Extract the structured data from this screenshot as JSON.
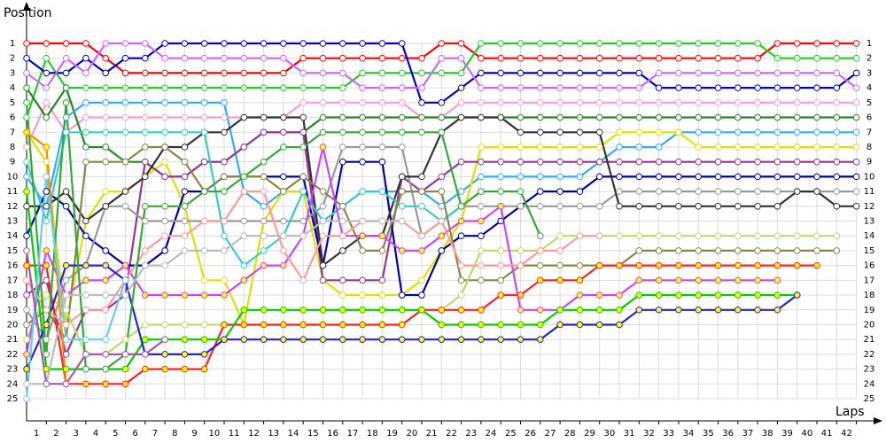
{
  "chart_data": {
    "type": "line",
    "y_title": "Position",
    "x_title": "Laps",
    "x": [
      0,
      1,
      2,
      3,
      4,
      5,
      6,
      7,
      8,
      9,
      10,
      11,
      12,
      13,
      14,
      15,
      16,
      17,
      18,
      19,
      20,
      21,
      22,
      23,
      24,
      25,
      26,
      27,
      28,
      29,
      30,
      31,
      32,
      33,
      34,
      35,
      36,
      37,
      38,
      39,
      40,
      41,
      42
    ],
    "xlim": [
      0,
      42
    ],
    "xticks": [
      1,
      2,
      3,
      4,
      5,
      6,
      7,
      8,
      9,
      10,
      11,
      12,
      13,
      14,
      15,
      16,
      17,
      18,
      19,
      20,
      21,
      22,
      23,
      24,
      25,
      26,
      27,
      28,
      29,
      30,
      31,
      32,
      33,
      34,
      35,
      36,
      37,
      38,
      39,
      40,
      41,
      42
    ],
    "ylim": [
      1,
      25
    ],
    "y_reversed": true,
    "yticks": [
      1,
      2,
      3,
      4,
      5,
      6,
      7,
      8,
      9,
      10,
      11,
      12,
      13,
      14,
      15,
      16,
      17,
      18,
      19,
      20,
      21,
      22,
      23,
      24,
      25
    ],
    "grid": true,
    "series": [
      {
        "color": "#ff0000",
        "marker_fill": "#ffffff",
        "values": [
          1,
          1,
          1,
          1,
          2,
          3,
          3,
          3,
          3,
          3,
          3,
          3,
          3,
          3,
          2,
          2,
          2,
          2,
          2,
          2,
          2,
          1,
          1,
          2,
          2,
          2,
          2,
          2,
          2,
          2,
          2,
          2,
          2,
          2,
          2,
          2,
          2,
          2,
          1,
          1,
          1,
          1,
          1
        ]
      },
      {
        "color": "#22cc22",
        "marker_fill": "#ffffff",
        "values": [
          6,
          2,
          4,
          4,
          4,
          4,
          4,
          4,
          4,
          4,
          4,
          4,
          4,
          4,
          4,
          4,
          4,
          3,
          3,
          3,
          3,
          3,
          3,
          1,
          1,
          1,
          1,
          1,
          1,
          1,
          1,
          1,
          1,
          1,
          1,
          1,
          1,
          1,
          2,
          2,
          2,
          2,
          2
        ]
      },
      {
        "color": "#0000cc",
        "marker_fill": "#ffffff",
        "values": [
          2,
          3,
          3,
          2,
          3,
          2,
          2,
          1,
          1,
          1,
          1,
          1,
          1,
          1,
          1,
          1,
          1,
          1,
          1,
          1,
          5,
          5,
          4,
          3,
          3,
          3,
          3,
          3,
          3,
          3,
          3,
          3,
          4,
          4,
          4,
          4,
          4,
          4,
          4,
          4,
          4,
          4,
          3
        ]
      },
      {
        "color": "#cc66ff",
        "marker_fill": "#ffffff",
        "values": [
          3,
          4,
          2,
          3,
          1,
          1,
          1,
          2,
          2,
          2,
          2,
          2,
          2,
          2,
          3,
          3,
          3,
          4,
          4,
          4,
          4,
          2,
          2,
          4,
          4,
          4,
          4,
          4,
          4,
          4,
          4,
          4,
          3,
          3,
          3,
          3,
          3,
          3,
          3,
          3,
          3,
          3,
          4
        ]
      },
      {
        "color": "#ff99cc",
        "marker_fill": "#ffffff",
        "values": [
          8,
          5,
          7,
          6,
          6,
          6,
          6,
          6,
          6,
          6,
          6,
          6,
          6,
          6,
          5,
          5,
          5,
          5,
          5,
          5,
          6,
          6,
          5,
          5,
          5,
          5,
          5,
          5,
          5,
          5,
          5,
          5,
          5,
          5,
          5,
          5,
          5,
          5,
          5,
          5,
          5,
          5,
          5
        ]
      },
      {
        "color": "#228822",
        "marker_fill": "#ffffff",
        "values": [
          4,
          6,
          4,
          8,
          8,
          9,
          9,
          10,
          10,
          9,
          9,
          8,
          7,
          7,
          7,
          6,
          6,
          6,
          6,
          6,
          6,
          6,
          6,
          6,
          6,
          6,
          6,
          6,
          6,
          6,
          6,
          6,
          6,
          6,
          6,
          6,
          6,
          6,
          6,
          6,
          6,
          6,
          6
        ]
      },
      {
        "color": "#33aaff",
        "marker_fill": "#ffffff",
        "values": [
          10,
          12,
          6,
          5,
          5,
          5,
          5,
          5,
          5,
          5,
          5,
          11,
          12,
          11,
          11,
          13,
          12,
          11,
          11,
          11,
          11,
          12,
          11,
          10,
          10,
          10,
          10,
          10,
          10,
          9,
          8,
          8,
          8,
          7,
          7,
          7,
          7,
          7,
          7,
          7,
          7,
          7,
          7
        ]
      },
      {
        "color": "#e0e000",
        "marker_fill": "#ffffff",
        "values": [
          7,
          9,
          20,
          13,
          11,
          11,
          10,
          9,
          12,
          17,
          17,
          20,
          13,
          11,
          11,
          17,
          18,
          18,
          18,
          18,
          17,
          15,
          13,
          8,
          8,
          8,
          8,
          8,
          8,
          8,
          7,
          7,
          7,
          7,
          8,
          8,
          8,
          8,
          8,
          8,
          8,
          8,
          8
        ]
      },
      {
        "color": "#993399",
        "marker_fill": "#ffffff",
        "values": [
          18,
          17,
          22,
          19,
          19,
          18,
          9,
          10,
          10,
          9,
          9,
          8,
          7,
          7,
          7,
          17,
          17,
          17,
          17,
          10,
          11,
          10,
          9,
          9,
          9,
          9,
          9,
          9,
          9,
          9,
          9,
          9,
          9,
          9,
          9,
          9,
          9,
          9,
          9,
          9,
          9,
          9,
          9
        ]
      },
      {
        "color": "#0000aa",
        "marker_fill": "#ffffff",
        "values": [
          14,
          11,
          12,
          14,
          15,
          16,
          16,
          15,
          11,
          11,
          10,
          10,
          10,
          10,
          10,
          16,
          9,
          9,
          9,
          18,
          18,
          15,
          14,
          14,
          13,
          12,
          11,
          11,
          11,
          10,
          10,
          10,
          10,
          10,
          10,
          10,
          10,
          10,
          10,
          10,
          10,
          10,
          10
        ]
      },
      {
        "color": "#999999",
        "marker_fill": "#ffffff",
        "values": [
          19,
          21,
          17,
          16,
          12,
          12,
          13,
          13,
          13,
          13,
          13,
          13,
          13,
          13,
          13,
          12,
          8,
          8,
          8,
          8,
          14,
          13,
          12,
          12,
          12,
          12,
          12,
          12,
          12,
          12,
          11,
          11,
          11,
          11,
          11,
          11,
          11,
          11,
          11,
          11,
          11,
          11,
          11
        ]
      },
      {
        "color": "#333333",
        "marker_fill": "#ffffff",
        "values": [
          12,
          12,
          11,
          13,
          12,
          11,
          10,
          8,
          8,
          7,
          7,
          6,
          6,
          6,
          6,
          16,
          15,
          14,
          14,
          10,
          10,
          7,
          6,
          6,
          6,
          7,
          7,
          7,
          7,
          7,
          12,
          12,
          12,
          12,
          12,
          12,
          12,
          12,
          12,
          11,
          11,
          12,
          12
        ]
      },
      {
        "color": "#33cccc",
        "marker_fill": "#ffffff",
        "values": [
          9,
          13,
          7,
          7,
          7,
          7,
          7,
          7,
          7,
          7,
          14,
          16,
          15,
          14,
          11,
          13,
          12,
          11,
          11,
          12,
          12,
          13,
          12,
          11,
          null,
          null,
          null,
          null,
          null,
          null,
          null,
          null,
          null,
          null,
          null,
          null,
          null,
          null,
          null,
          null,
          null,
          null,
          null
        ]
      },
      {
        "color": "#888844",
        "marker_fill": "#ffffff",
        "values": [
          20,
          19,
          21,
          9,
          9,
          9,
          8,
          8,
          9,
          11,
          10,
          10,
          10,
          11,
          10,
          11,
          12,
          15,
          15,
          11,
          11,
          11,
          17,
          17,
          17,
          16,
          16,
          16,
          16,
          16,
          16,
          15,
          15,
          15,
          15,
          15,
          15,
          15,
          15,
          15,
          15,
          15,
          null
        ]
      },
      {
        "color": "#bbdd66",
        "marker_fill": "#ffffff",
        "values": [
          21,
          18,
          19,
          22,
          22,
          21,
          20,
          20,
          20,
          20,
          20,
          20,
          20,
          20,
          20,
          20,
          20,
          20,
          20,
          20,
          19,
          19,
          18,
          15,
          15,
          15,
          15,
          14,
          14,
          14,
          14,
          14,
          14,
          14,
          14,
          14,
          14,
          14,
          14,
          14,
          14,
          14,
          null
        ]
      },
      {
        "color": "#ff2222",
        "marker_fill": "#ffff00",
        "values": [
          16,
          16,
          24,
          24,
          24,
          24,
          23,
          23,
          23,
          23,
          20,
          20,
          20,
          20,
          20,
          20,
          20,
          20,
          20,
          20,
          19,
          19,
          19,
          19,
          18,
          18,
          17,
          17,
          17,
          16,
          16,
          16,
          16,
          16,
          16,
          16,
          16,
          16,
          16,
          16,
          16,
          null,
          null
        ]
      },
      {
        "color": "#cc44ff",
        "marker_fill": "#ffff00",
        "values": [
          22,
          15,
          18,
          17,
          17,
          16,
          18,
          18,
          18,
          18,
          18,
          17,
          16,
          16,
          14,
          8,
          14,
          14,
          14,
          15,
          15,
          14,
          13,
          13,
          12,
          19,
          19,
          19,
          18,
          18,
          18,
          17,
          17,
          17,
          17,
          17,
          17,
          17,
          17,
          null,
          null,
          null,
          null
        ]
      },
      {
        "color": "#00cc00",
        "marker_fill": "#ffff00",
        "values": [
          11,
          23,
          23,
          23,
          23,
          23,
          21,
          21,
          21,
          21,
          21,
          19,
          19,
          19,
          19,
          19,
          19,
          19,
          19,
          19,
          19,
          20,
          20,
          20,
          20,
          20,
          20,
          19,
          19,
          19,
          19,
          18,
          18,
          18,
          18,
          18,
          18,
          18,
          18,
          18,
          null,
          null,
          null
        ]
      },
      {
        "color": "#2222dd",
        "marker_fill": "#ffff00",
        "values": [
          23,
          20,
          16,
          16,
          16,
          17,
          22,
          22,
          22,
          22,
          21,
          21,
          21,
          21,
          21,
          21,
          21,
          21,
          21,
          21,
          21,
          21,
          21,
          21,
          21,
          21,
          21,
          20,
          20,
          20,
          20,
          19,
          19,
          19,
          19,
          19,
          19,
          19,
          19,
          18,
          null,
          null,
          null
        ]
      },
      {
        "color": "#ff9999",
        "marker_fill": "#ffffff",
        "values": [
          17,
          19,
          20,
          19,
          19,
          17,
          15,
          14,
          14,
          13,
          13,
          11,
          11,
          15,
          17,
          14,
          14,
          13,
          13,
          13,
          14,
          13,
          16,
          16,
          16,
          16,
          15,
          15,
          14,
          14,
          null,
          null,
          null,
          null,
          null,
          null,
          null,
          null,
          null,
          null,
          null,
          null,
          null
        ]
      },
      {
        "color": "#33aa33",
        "marker_fill": "#ffffff",
        "values": [
          5,
          22,
          5,
          23,
          23,
          22,
          12,
          12,
          12,
          11,
          11,
          10,
          9,
          8,
          8,
          7,
          7,
          7,
          7,
          7,
          7,
          7,
          12,
          11,
          11,
          11,
          14,
          null,
          null,
          null,
          null,
          null,
          null,
          null,
          null,
          null,
          null,
          null,
          null,
          null,
          null,
          null,
          null
        ]
      },
      {
        "color": "#ff8800",
        "marker_fill": "#ffff00",
        "values": [
          7,
          8,
          24,
          null,
          null,
          null,
          null,
          null,
          null,
          null,
          null,
          null,
          null,
          null,
          null,
          null,
          null,
          null,
          null,
          null,
          null,
          null,
          null,
          null,
          null,
          null,
          null,
          null,
          null,
          null,
          null,
          null,
          null,
          null,
          null,
          null,
          null,
          null,
          null,
          null,
          null,
          null,
          null
        ]
      },
      {
        "color": "#bbbbbb",
        "marker_fill": "#ffffff",
        "values": [
          24,
          24,
          18,
          18,
          18,
          18,
          16,
          16,
          15,
          15,
          15,
          14,
          14,
          14,
          14,
          13,
          13,
          13,
          13,
          13,
          null,
          null,
          null,
          null,
          null,
          null,
          null,
          null,
          null,
          null,
          null,
          null,
          null,
          null,
          null,
          null,
          null,
          null,
          null,
          null,
          null,
          null,
          null
        ]
      },
      {
        "color": "#66ccee",
        "marker_fill": "#ffffff",
        "values": [
          25,
          10,
          21,
          21,
          21,
          17,
          null,
          null,
          null,
          null,
          null,
          null,
          null,
          null,
          null,
          null,
          null,
          null,
          null,
          null,
          null,
          null,
          null,
          null,
          null,
          null,
          null,
          null,
          null,
          null,
          null,
          null,
          null,
          null,
          null,
          null,
          null,
          null,
          null,
          null,
          null,
          null,
          null
        ]
      },
      {
        "color": "#aa55aa",
        "marker_fill": "#ffffff",
        "values": [
          15,
          24,
          24,
          22,
          22,
          22,
          22,
          21,
          null,
          null,
          null,
          null,
          null,
          null,
          null,
          null,
          null,
          null,
          null,
          null,
          null,
          null,
          null,
          null,
          null,
          null,
          null,
          null,
          null,
          null,
          null,
          null,
          null,
          null,
          null,
          null,
          null,
          null,
          null,
          null,
          null,
          null,
          null
        ]
      }
    ]
  }
}
